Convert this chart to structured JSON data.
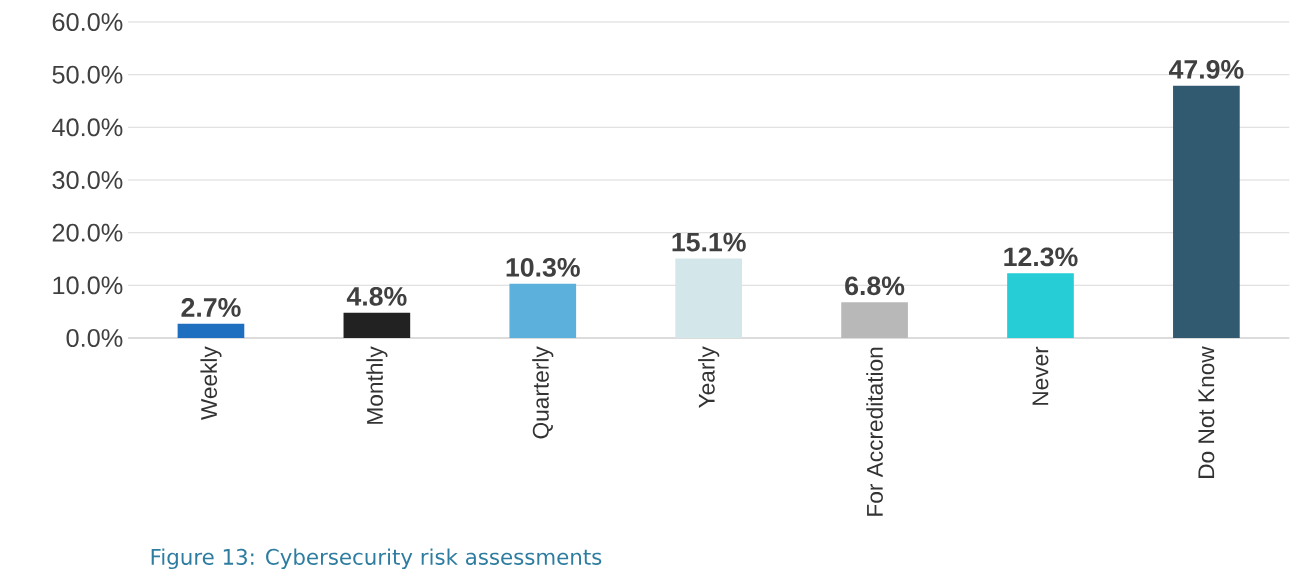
{
  "chart_data": {
    "type": "bar",
    "categories": [
      "Weekly",
      "Monthly",
      "Quarterly",
      "Yearly",
      "For  Accreditation",
      "Never",
      "Do Not Know"
    ],
    "values": [
      2.7,
      4.8,
      10.3,
      15.1,
      6.8,
      12.3,
      47.9
    ],
    "colors": [
      "#1f6fc0",
      "#222222",
      "#5bb0dc",
      "#d3e6ea",
      "#b8b8b8",
      "#26cdd6",
      "#31596f"
    ],
    "value_labels": [
      "2.7%",
      "4.8%",
      "10.3%",
      "15.1%",
      "6.8%",
      "12.3%",
      "47.9%"
    ],
    "ylim": [
      0,
      60
    ],
    "yticks": [
      {
        "value": 0,
        "label": "0.0%"
      },
      {
        "value": 10,
        "label": "10.0%"
      },
      {
        "value": 20,
        "label": "20.0%"
      },
      {
        "value": 30,
        "label": "30.0%"
      },
      {
        "value": 40,
        "label": "40.0%"
      },
      {
        "value": 50,
        "label": "50.0%"
      },
      {
        "value": 60,
        "label": "60.0%"
      }
    ],
    "grid": "y",
    "annotations": [
      "Figure 13: Cybersecurity risk assessments"
    ]
  }
}
